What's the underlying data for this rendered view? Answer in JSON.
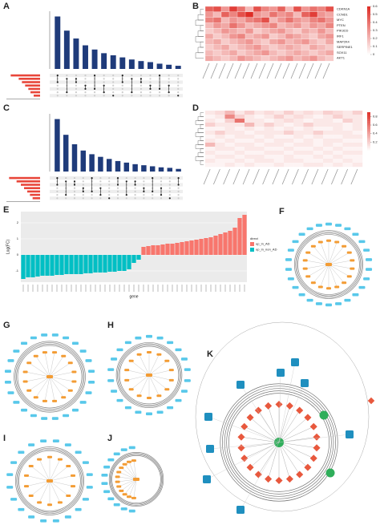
{
  "panels": {
    "A": {
      "letter": "A",
      "bars": [
        100,
        73,
        58,
        45,
        37,
        30,
        26,
        22,
        18,
        15,
        13,
        10,
        8,
        6
      ],
      "ylim": [
        0,
        110
      ],
      "set_sizes": [
        55,
        40,
        34,
        28,
        22,
        18,
        12
      ],
      "set_xlim": [
        0,
        60
      ],
      "bar_color": "#1f3b7a",
      "set_color": "#e8463a"
    },
    "B": {
      "letter": "B",
      "genes": [
        "CDKN1A",
        "CCND1",
        "MYC",
        "PTEN",
        "PIK3CD",
        "IRF1",
        "MAP2K4",
        "SERPINE1",
        "SOX11",
        "AKT1"
      ],
      "matrix": [
        [
          0.45,
          0.5,
          0.3,
          0.55,
          0.4,
          0.2,
          0.5,
          0.35,
          0.3,
          0.45,
          0.2,
          0.5,
          0.3,
          0.4,
          0.35,
          0.5
        ],
        [
          0.3,
          0.2,
          0.45,
          0.35,
          0.5,
          0.6,
          0.3,
          0.25,
          0.4,
          0.3,
          0.35,
          0.2,
          0.45,
          0.55,
          0.3,
          0.25
        ],
        [
          0.35,
          0.4,
          0.2,
          0.3,
          0.25,
          0.35,
          0.4,
          0.5,
          0.2,
          0.3,
          0.4,
          0.3,
          0.25,
          0.35,
          0.4,
          0.3
        ],
        [
          0.2,
          0.3,
          0.25,
          0.4,
          0.3,
          0.2,
          0.25,
          0.3,
          0.35,
          0.2,
          0.25,
          0.3,
          0.2,
          0.3,
          0.25,
          0.35
        ],
        [
          0.15,
          0.2,
          0.3,
          0.25,
          0.2,
          0.3,
          0.15,
          0.2,
          0.25,
          0.3,
          0.2,
          0.15,
          0.25,
          0.2,
          0.3,
          0.2
        ],
        [
          0.25,
          0.15,
          0.2,
          0.3,
          0.35,
          0.2,
          0.25,
          0.3,
          0.15,
          0.2,
          0.3,
          0.25,
          0.2,
          0.15,
          0.25,
          0.3
        ],
        [
          0.2,
          0.25,
          0.15,
          0.2,
          0.25,
          0.3,
          0.2,
          0.15,
          0.25,
          0.3,
          0.2,
          0.25,
          0.3,
          0.2,
          0.15,
          0.25
        ],
        [
          0.15,
          0.2,
          0.25,
          0.15,
          0.2,
          0.25,
          0.3,
          0.2,
          0.15,
          0.2,
          0.25,
          0.2,
          0.15,
          0.25,
          0.2,
          0.15
        ],
        [
          0.2,
          0.15,
          0.2,
          0.25,
          0.15,
          0.2,
          0.25,
          0.3,
          0.2,
          0.15,
          0.2,
          0.25,
          0.2,
          0.15,
          0.2,
          0.25
        ],
        [
          0.25,
          0.2,
          0.15,
          0.2,
          0.3,
          0.25,
          0.2,
          0.15,
          0.2,
          0.25,
          0.3,
          0.2,
          0.25,
          0.3,
          0.2,
          0.15
        ]
      ],
      "vlim": [
        0,
        0.6
      ],
      "colorbar_ticks": [
        0,
        0.1,
        0.2,
        0.3,
        0.4,
        0.5,
        0.6
      ]
    },
    "C": {
      "letter": "C",
      "bars": [
        100,
        70,
        52,
        40,
        33,
        28,
        24,
        20,
        17,
        14,
        12,
        10,
        8,
        7,
        5
      ],
      "ylim": [
        0,
        110
      ],
      "set_sizes": [
        58,
        44,
        36,
        30,
        24,
        19,
        14
      ],
      "set_xlim": [
        0,
        60
      ],
      "bar_color": "#1f3b7a",
      "set_color": "#e8463a"
    },
    "D": {
      "letter": "D",
      "matrix": [
        [
          0.1,
          0.15,
          0.3,
          0.1,
          0.2,
          0.1,
          0.15,
          0.1,
          0.2,
          0.1,
          0.15,
          0.1,
          0.2,
          0.15,
          0.1,
          0.2
        ],
        [
          0.05,
          0.1,
          0.5,
          0.2,
          0.1,
          0.05,
          0.1,
          0.2,
          0.1,
          0.15,
          0.1,
          0.05,
          0.1,
          0.2,
          0.1,
          0.1
        ],
        [
          0.1,
          0.05,
          0.2,
          0.6,
          0.1,
          0.1,
          0.05,
          0.1,
          0.15,
          0.1,
          0.05,
          0.1,
          0.1,
          0.05,
          0.2,
          0.1
        ],
        [
          0.2,
          0.1,
          0.1,
          0.1,
          0.3,
          0.1,
          0.2,
          0.1,
          0.05,
          0.1,
          0.2,
          0.1,
          0.1,
          0.1,
          0.05,
          0.1
        ],
        [
          0.05,
          0.05,
          0.1,
          0.05,
          0.1,
          0.05,
          0.1,
          0.05,
          0.1,
          0.05,
          0.1,
          0.05,
          0.05,
          0.1,
          0.05,
          0.1
        ],
        [
          0.1,
          0.2,
          0.1,
          0.1,
          0.05,
          0.1,
          0.1,
          0.1,
          0.2,
          0.1,
          0.1,
          0.2,
          0.1,
          0.1,
          0.1,
          0.05
        ],
        [
          0.05,
          0.1,
          0.05,
          0.1,
          0.1,
          0.05,
          0.1,
          0.05,
          0.05,
          0.1,
          0.05,
          0.1,
          0.05,
          0.05,
          0.1,
          0.1
        ],
        [
          0.1,
          0.05,
          0.1,
          0.05,
          0.05,
          0.1,
          0.05,
          0.1,
          0.1,
          0.05,
          0.1,
          0.05,
          0.1,
          0.1,
          0.05,
          0.05
        ],
        [
          0.3,
          0.1,
          0.05,
          0.1,
          0.1,
          0.05,
          0.1,
          0.1,
          0.05,
          0.1,
          0.1,
          0.05,
          0.1,
          0.05,
          0.1,
          0.1
        ],
        [
          0.05,
          0.1,
          0.1,
          0.05,
          0.1,
          0.1,
          0.05,
          0.05,
          0.1,
          0.05,
          0.05,
          0.1,
          0.05,
          0.1,
          0.05,
          0.05
        ],
        [
          0.1,
          0.05,
          0.05,
          0.1,
          0.05,
          0.05,
          0.1,
          0.1,
          0.05,
          0.1,
          0.1,
          0.05,
          0.1,
          0.05,
          0.1,
          0.1
        ],
        [
          0.05,
          0.1,
          0.1,
          0.05,
          0.1,
          0.1,
          0.05,
          0.05,
          0.1,
          0.05,
          0.05,
          0.1,
          0.05,
          0.1,
          0.05,
          0.05
        ],
        [
          0.1,
          0.05,
          0.05,
          0.1,
          0.05,
          0.1,
          0.1,
          0.05,
          0.1,
          0.1,
          0.05,
          0.05,
          0.1,
          0.05,
          0.1,
          0.05
        ],
        [
          0.05,
          0.05,
          0.1,
          0.05,
          0.1,
          0.05,
          0.05,
          0.1,
          0.05,
          0.05,
          0.1,
          0.1,
          0.05,
          0.1,
          0.05,
          0.1
        ]
      ],
      "vlim": [
        0,
        0.9
      ],
      "colorbar_ticks": [
        0.2,
        0.4,
        0.6,
        0.8
      ]
    },
    "E": {
      "letter": "E",
      "y_label": "Log(FC)",
      "x_label": "gene",
      "legend_title": "direct",
      "ylim": [
        -1.7,
        2.7
      ],
      "yticks": [
        -1,
        0,
        1,
        2
      ],
      "series": [
        {
          "name": "up_in_AD",
          "color": "#f8766d",
          "values": [
            0.5,
            0.55,
            0.6,
            0.6,
            0.65,
            0.7,
            0.7,
            0.75,
            0.8,
            0.85,
            0.9,
            0.95,
            1.0,
            1.05,
            1.1,
            1.2,
            1.3,
            1.4,
            1.5,
            1.7,
            2.3,
            2.5
          ]
        },
        {
          "name": "up_in_non_AD",
          "color": "#00bfc4",
          "values": [
            -1.5,
            -1.4,
            -1.4,
            -1.35,
            -1.3,
            -1.3,
            -1.3,
            -1.25,
            -1.25,
            -1.2,
            -1.2,
            -1.2,
            -1.2,
            -1.15,
            -1.15,
            -1.1,
            -1.1,
            -1.1,
            -1.05,
            -1.05,
            -1.0,
            -1.0,
            -0.9,
            -0.5,
            -0.3
          ]
        }
      ]
    },
    "F": {
      "letter": "F"
    },
    "G": {
      "letter": "G"
    },
    "H": {
      "letter": "H"
    },
    "I": {
      "letter": "I"
    },
    "J": {
      "letter": "J"
    },
    "K": {
      "letter": "K"
    }
  }
}
